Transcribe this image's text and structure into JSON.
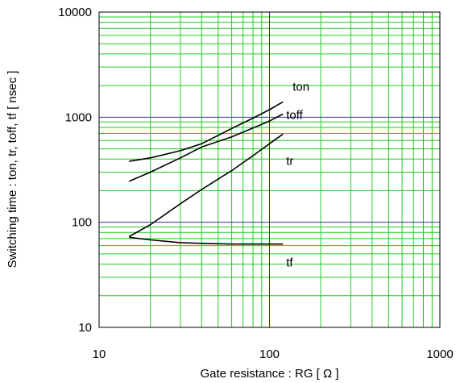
{
  "chart_data": {
    "type": "line",
    "title": "",
    "xlabel": "Gate resistance : RG [ Ω ]",
    "ylabel": "Switching time : ton, tr, toff, tf [ nsec ]",
    "x_scale": "log",
    "y_scale": "log",
    "xlim": [
      10,
      1000
    ],
    "ylim": [
      10,
      10000
    ],
    "x_ticks": [
      "10",
      "100",
      "1000"
    ],
    "y_ticks": [
      "10",
      "100",
      "1000",
      "10000"
    ],
    "grid": true,
    "grid_colors": {
      "minor": "#22cc22",
      "major": "#3333aa"
    },
    "series": [
      {
        "name": "ton",
        "x": [
          15,
          20,
          30,
          40,
          60,
          80,
          100,
          120
        ],
        "y": [
          380,
          410,
          480,
          560,
          780,
          980,
          1180,
          1400
        ]
      },
      {
        "name": "toff",
        "x": [
          15,
          20,
          30,
          40,
          60,
          80,
          100,
          120
        ],
        "y": [
          245,
          300,
          410,
          520,
          650,
          790,
          920,
          1070
        ]
      },
      {
        "name": "tr",
        "x": [
          15,
          20,
          30,
          40,
          60,
          80,
          100,
          120
        ],
        "y": [
          73,
          95,
          150,
          205,
          310,
          430,
          560,
          690
        ]
      },
      {
        "name": "tf",
        "x": [
          15,
          20,
          30,
          40,
          60,
          80,
          100,
          120
        ],
        "y": [
          72,
          68,
          64,
          63,
          62,
          62,
          62,
          62
        ]
      }
    ]
  }
}
